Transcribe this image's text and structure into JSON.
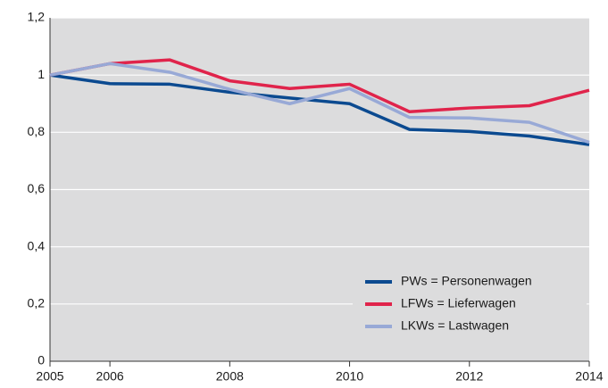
{
  "chart_data": {
    "type": "line",
    "x": [
      2005,
      2006,
      2007,
      2008,
      2009,
      2010,
      2011,
      2012,
      2013,
      2014
    ],
    "series": [
      {
        "name": "PWs = Personenwagen",
        "color": "#0b4a90",
        "values": [
          1.0,
          0.97,
          0.968,
          0.94,
          0.92,
          0.9,
          0.81,
          0.803,
          0.787,
          0.757
        ]
      },
      {
        "name": "LFWs = Lieferwagen",
        "color": "#e0244b",
        "values": [
          1.0,
          1.04,
          1.053,
          0.98,
          0.953,
          0.968,
          0.872,
          0.885,
          0.893,
          0.947
        ]
      },
      {
        "name": "LKWs = Lastwagen",
        "color": "#98a9d6",
        "values": [
          1.0,
          1.04,
          1.01,
          0.95,
          0.9,
          0.953,
          0.852,
          0.85,
          0.835,
          0.765
        ]
      }
    ],
    "xlim": [
      2005,
      2014
    ],
    "xticks": [
      2005,
      2006,
      2008,
      2010,
      2012,
      2014
    ],
    "ylim": [
      0,
      1.2
    ],
    "yticks": [
      0,
      {
        "value": 0.2,
        "label": "0,2"
      },
      {
        "value": 0.4,
        "label": "0,4"
      },
      {
        "value": 0.6,
        "label": "0,6"
      },
      {
        "value": 0.8,
        "label": "0,8"
      },
      1,
      {
        "value": 1.2,
        "label": "1,2"
      }
    ],
    "grid": true,
    "legend": "lower right"
  }
}
